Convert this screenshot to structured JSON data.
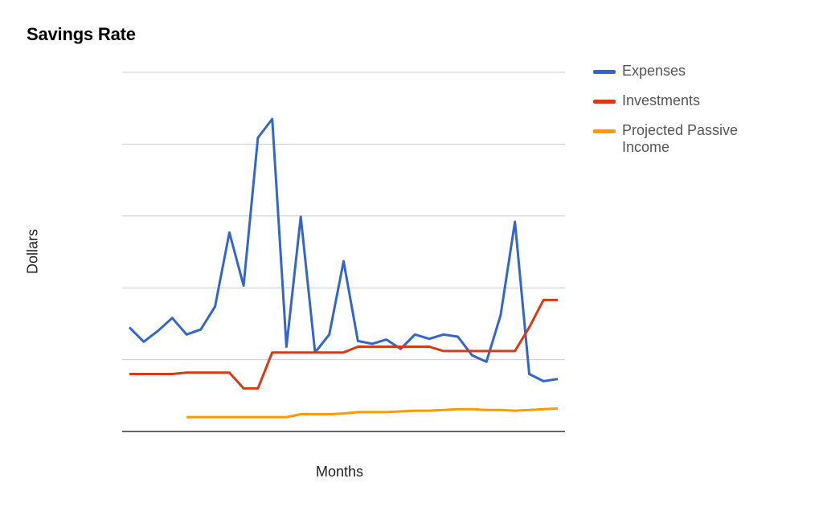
{
  "chart_data": {
    "type": "line",
    "title": "Savings Rate",
    "xlabel": "Months",
    "ylabel": "Dollars",
    "ylim": [
      0,
      5
    ],
    "grid": true,
    "legend_position": "right",
    "x": [
      1,
      2,
      3,
      4,
      5,
      6,
      7,
      8,
      9,
      10,
      11,
      12,
      13,
      14,
      15,
      16,
      17,
      18,
      19,
      20,
      21,
      22,
      23,
      24,
      25,
      26,
      27,
      28,
      29,
      30,
      31
    ],
    "series": [
      {
        "name": "Expenses",
        "color": "#3366cc",
        "values": [
          1.45,
          1.25,
          1.4,
          1.58,
          1.35,
          1.42,
          1.74,
          2.77,
          2.03,
          4.09,
          4.35,
          1.18,
          2.99,
          1.1,
          1.35,
          2.37,
          1.26,
          1.22,
          1.28,
          1.15,
          1.35,
          1.29,
          1.35,
          1.32,
          1.06,
          0.97,
          1.62,
          2.92,
          0.8,
          0.7,
          0.73
        ]
      },
      {
        "name": "Investments",
        "color": "#dc3912",
        "values": [
          0.8,
          0.8,
          0.8,
          0.8,
          0.82,
          0.82,
          0.82,
          0.82,
          0.6,
          0.6,
          1.1,
          1.1,
          1.1,
          1.1,
          1.1,
          1.1,
          1.18,
          1.18,
          1.18,
          1.18,
          1.18,
          1.18,
          1.12,
          1.12,
          1.12,
          1.12,
          1.12,
          1.12,
          1.45,
          1.83,
          1.83
        ]
      },
      {
        "name": "Projected Passive Income",
        "color": "#ff9900",
        "values": [
          null,
          null,
          null,
          null,
          0.2,
          0.2,
          0.2,
          0.2,
          0.2,
          0.2,
          0.2,
          0.2,
          0.24,
          0.24,
          0.24,
          0.25,
          0.27,
          0.27,
          0.27,
          0.28,
          0.29,
          0.29,
          0.3,
          0.31,
          0.31,
          0.3,
          0.3,
          0.29,
          0.3,
          0.31,
          0.32
        ]
      }
    ]
  }
}
